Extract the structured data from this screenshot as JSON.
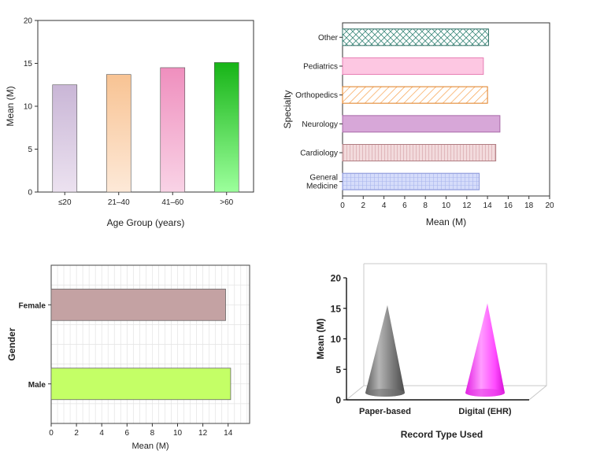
{
  "chart_data": [
    {
      "type": "bar",
      "xlabel": "Age Group (years)",
      "ylabel": "Mean (M)",
      "categories": [
        "≤20",
        "21–40",
        "41–60",
        ">60"
      ],
      "values": [
        12.5,
        13.7,
        14.5,
        15.1
      ],
      "ylim": [
        0,
        20
      ],
      "yticks": [
        "0",
        "5",
        "10",
        "15",
        "20"
      ],
      "colors": [
        "#c9b6d6",
        "#f8c393",
        "#ef8fbe",
        "#2ebd2e"
      ],
      "grid": false
    },
    {
      "type": "bar",
      "orientation": "horizontal",
      "xlabel": "Mean (M)",
      "ylabel": "Specialty",
      "categories": [
        "General Medicine",
        "Cardiology",
        "Neurology",
        "Orthopedics",
        "Pediatrics",
        "Other"
      ],
      "category_lines": [
        [
          "General",
          "Medicine"
        ],
        [
          "Cardiology"
        ],
        [
          "Neurology"
        ],
        [
          "Orthopedics"
        ],
        [
          "Pediatrics"
        ],
        [
          "Other"
        ]
      ],
      "values": [
        13.2,
        14.8,
        15.2,
        14.0,
        13.6,
        14.1
      ],
      "xlim": [
        0,
        20
      ],
      "xticks": [
        "0",
        "2",
        "4",
        "6",
        "8",
        "10",
        "12",
        "14",
        "16",
        "18",
        "20"
      ],
      "colors": [
        "#c8d0f5",
        "#ecc9cc",
        "#d7a7d8",
        "#f7a24e",
        "#fdc7e2",
        "#3d8a7c"
      ],
      "grid": false
    },
    {
      "type": "bar",
      "orientation": "horizontal",
      "xlabel": "Mean (M)",
      "ylabel": "Gender",
      "categories": [
        "Male",
        "Female"
      ],
      "values": [
        14.2,
        13.8
      ],
      "xlim": [
        0,
        15.7
      ],
      "xticks": [
        "0",
        "2",
        "4",
        "6",
        "8",
        "10",
        "12",
        "14"
      ],
      "colors": [
        "#c4ff66",
        "#c4a2a3"
      ],
      "grid": true
    },
    {
      "type": "bar",
      "style": "3d-cone",
      "xlabel": "Record Type Used",
      "ylabel": "Mean (M)",
      "categories": [
        "Paper-based",
        "Digital (EHR)"
      ],
      "values": [
        15.0,
        15.3
      ],
      "ylim": [
        0,
        20
      ],
      "yticks": [
        "0",
        "5",
        "10",
        "15",
        "20"
      ],
      "colors": [
        "#8a8a8a",
        "#ff44ff"
      ],
      "grid": false
    }
  ]
}
